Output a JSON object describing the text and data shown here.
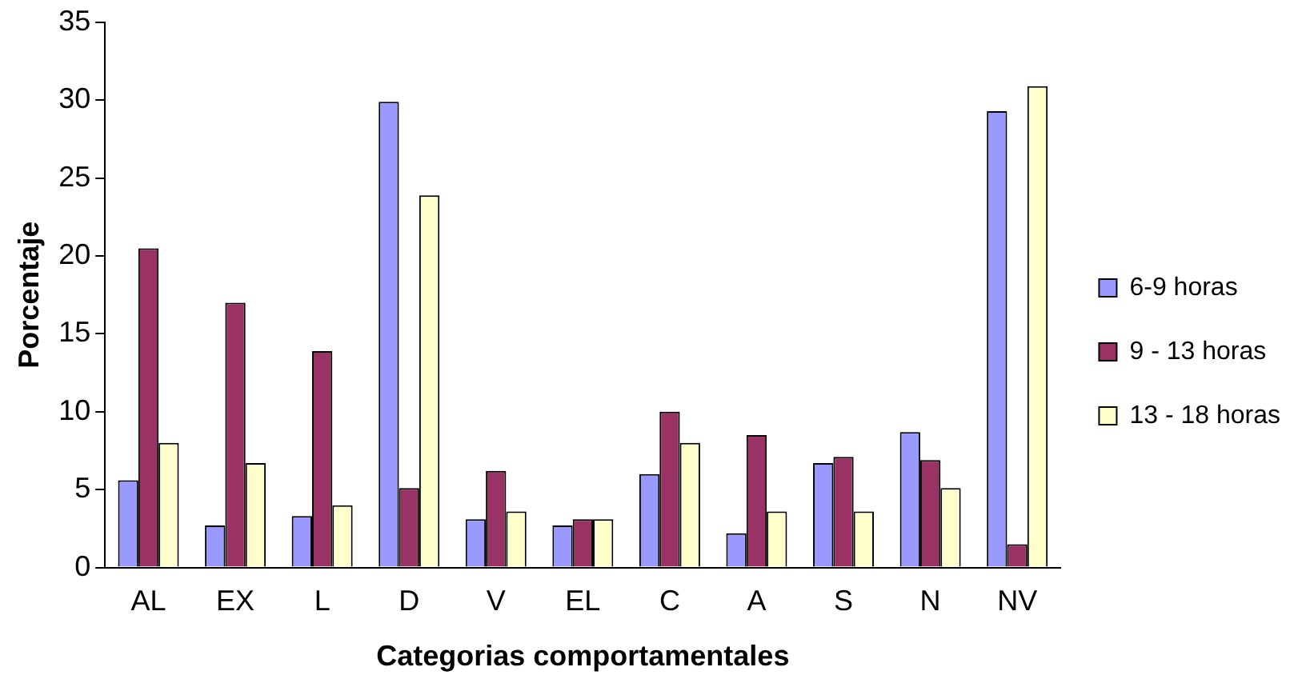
{
  "chart_data": {
    "type": "bar",
    "xlabel": "Categorias comportamentales",
    "ylabel": "Porcentaje",
    "categories": [
      "AL",
      "EX",
      "L",
      "D",
      "V",
      "EL",
      "C",
      "A",
      "S",
      "N",
      "NV"
    ],
    "series": [
      {
        "name": "6-9 horas",
        "color": "#9999ff",
        "values": [
          5.6,
          2.7,
          3.3,
          29.9,
          3.1,
          2.7,
          6.0,
          2.2,
          6.7,
          8.7,
          29.3
        ]
      },
      {
        "name": "9 - 13 horas",
        "color": "#993366",
        "values": [
          20.5,
          17.0,
          13.9,
          5.1,
          6.2,
          3.1,
          10.0,
          8.5,
          7.1,
          6.9,
          1.5
        ]
      },
      {
        "name": "13 - 18 horas",
        "color": "#ffffcc",
        "values": [
          8.0,
          6.7,
          4.0,
          23.9,
          3.6,
          3.1,
          8.0,
          3.6,
          3.6,
          5.1,
          30.9
        ]
      }
    ],
    "ylim": [
      0,
      35
    ],
    "yticks": [
      0,
      5,
      10,
      15,
      20,
      25,
      30,
      35
    ],
    "grid": false,
    "legend": "right"
  }
}
